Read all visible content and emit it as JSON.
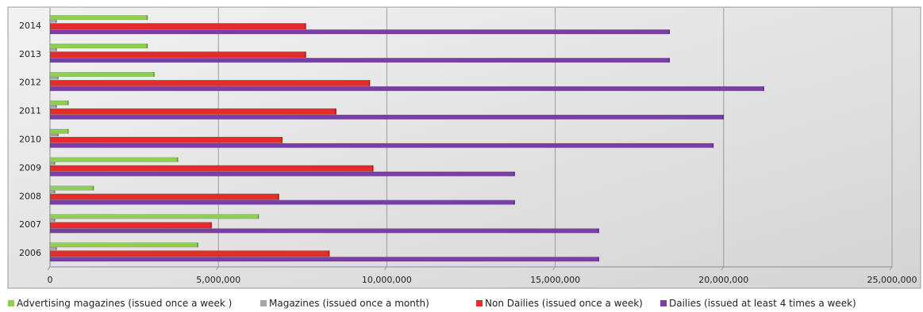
{
  "chart_data": {
    "type": "bar",
    "orientation": "horizontal",
    "categories": [
      "2006",
      "2007",
      "2008",
      "2009",
      "2010",
      "2011",
      "2012",
      "2013",
      "2014"
    ],
    "series": [
      {
        "name": "Advertising magazines (issued  once  a  week )",
        "color": "#8fd14f",
        "values": [
          4400000,
          6200000,
          1300000,
          3800000,
          550000,
          550000,
          3100000,
          2900000,
          2900000
        ]
      },
      {
        "name": "Magazines (issued  once  a  month)",
        "color": "#a6a6a6",
        "values": [
          200000,
          150000,
          150000,
          150000,
          250000,
          200000,
          250000,
          200000,
          200000
        ]
      },
      {
        "name": "Non Dailies (issued once a week)",
        "color": "#e52b2b",
        "values": [
          8300000,
          4800000,
          6800000,
          9600000,
          6900000,
          8500000,
          9500000,
          7600000,
          7600000
        ]
      },
      {
        "name": "Dailies (issued at least 4 times a week)",
        "color": "#7a3ea8",
        "values": [
          16300000,
          16300000,
          13800000,
          13800000,
          19700000,
          20000000,
          21200000,
          18400000,
          18400000
        ]
      }
    ],
    "x_ticks": [
      "0",
      "5,000,000",
      "10,000,000",
      "15,000,000",
      "20,000,000",
      "25,000,000"
    ],
    "xlim": [
      0,
      25000000
    ],
    "grid": true,
    "legend_position": "bottom",
    "title": "",
    "xlabel": "",
    "ylabel": ""
  }
}
